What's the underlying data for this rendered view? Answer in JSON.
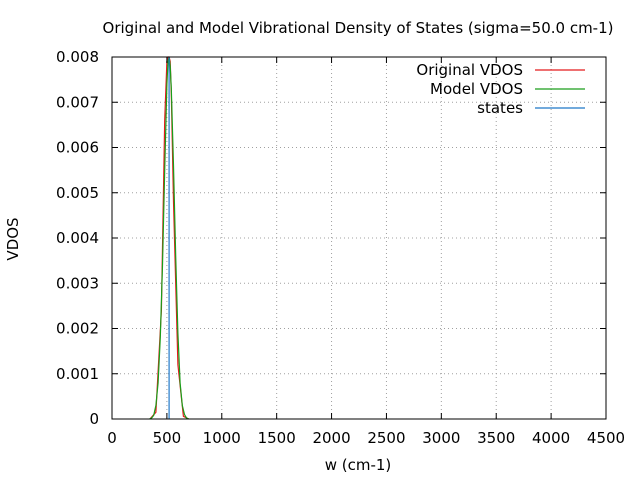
{
  "chart_data": {
    "type": "line",
    "title": "Original and Model Vibrational Density of States (sigma=50.0 cm-1)",
    "xlabel": "w (cm-1)",
    "ylabel": "VDOS",
    "xlim": [
      0,
      4500
    ],
    "ylim": [
      0,
      0.008
    ],
    "x_ticks": [
      0,
      500,
      1000,
      1500,
      2000,
      2500,
      3000,
      3500,
      4000,
      4500
    ],
    "x_tick_labels": [
      "0",
      "500",
      "1000",
      "1500",
      "2000",
      "2500",
      "3000",
      "3500",
      "4000",
      "4500"
    ],
    "y_ticks": [
      0,
      0.001,
      0.002,
      0.003,
      0.004,
      0.005,
      0.006,
      0.007,
      0.008
    ],
    "y_tick_labels": [
      "0",
      "0.001",
      "0.002",
      "0.003",
      "0.004",
      "0.005",
      "0.006",
      "0.007",
      "0.008"
    ],
    "grid": true,
    "legend_position": "top-right",
    "series": [
      {
        "name": "Original VDOS",
        "color": "#e41a1c",
        "kind": "line",
        "x": [
          350,
          400,
          450,
          480,
          500,
          510,
          520,
          530,
          540,
          560,
          600,
          650,
          700
        ],
        "y": [
          1e-05,
          0.00015,
          0.0024,
          0.0066,
          0.0079,
          0.008,
          0.008,
          0.0079,
          0.0072,
          0.0048,
          0.0012,
          6e-05,
          0
        ]
      },
      {
        "name": "Model VDOS",
        "color": "#1a9e1a",
        "kind": "line",
        "x": [
          340,
          360,
          380,
          400,
          420,
          440,
          460,
          480,
          500,
          510,
          520,
          530,
          540,
          560,
          580,
          600,
          620,
          640,
          660,
          680,
          700
        ],
        "y": [
          0,
          2e-05,
          8e-05,
          0.0003,
          0.0008,
          0.0018,
          0.0034,
          0.0055,
          0.0074,
          0.0079,
          0.008,
          0.0078,
          0.0073,
          0.0056,
          0.0036,
          0.0019,
          0.0008,
          0.0003,
          0.0001,
          2e-05,
          0
        ]
      },
      {
        "name": "states",
        "color": "#1f78c8",
        "kind": "impulse",
        "x": [
          520
        ],
        "y": [
          0.008
        ]
      }
    ]
  }
}
